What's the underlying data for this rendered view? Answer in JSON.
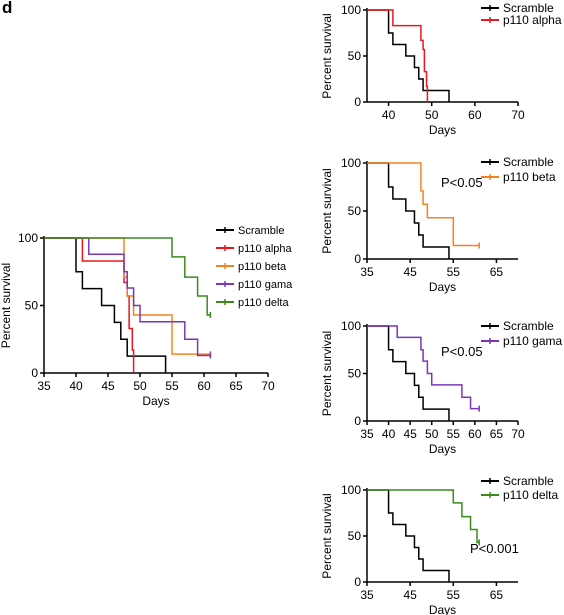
{
  "panel_label": "d",
  "chart_data": [
    {
      "type": "line",
      "subtype": "kaplan-meier",
      "title": "",
      "xlabel": "Days",
      "ylabel": "Percent survival",
      "xlim": [
        35,
        70
      ],
      "ylim": [
        0,
        100
      ],
      "xticks": [
        35,
        40,
        45,
        50,
        55,
        60,
        65,
        70
      ],
      "yticks": [
        0,
        50,
        100
      ],
      "legend_position": "right",
      "annotation": "",
      "series": [
        {
          "name": "Scramble",
          "color": "#000000",
          "steps": [
            [
              35,
              100
            ],
            [
              40,
              75
            ],
            [
              41,
              62.5
            ],
            [
              44,
              50
            ],
            [
              46,
              37.5
            ],
            [
              47,
              25
            ],
            [
              48,
              12.5
            ],
            [
              54,
              0
            ]
          ],
          "censored": []
        },
        {
          "name": "p110 alpha",
          "color": "#e8191f",
          "steps": [
            [
              35,
              100
            ],
            [
              41,
              83
            ],
            [
              47,
              83
            ],
            [
              47.5,
              67
            ],
            [
              48,
              57
            ],
            [
              48.3,
              33
            ],
            [
              48.8,
              17
            ],
            [
              49,
              0
            ]
          ],
          "censored": []
        },
        {
          "name": "p110 beta",
          "color": "#f58220",
          "steps": [
            [
              35,
              100
            ],
            [
              47,
              100
            ],
            [
              47.5,
              71
            ],
            [
              48,
              57
            ],
            [
              49,
              43
            ],
            [
              55,
              43
            ],
            [
              55,
              14
            ],
            [
              61,
              14
            ]
          ],
          "censored": [
            [
              61,
              14
            ]
          ]
        },
        {
          "name": "p110 gama",
          "color": "#7b35b9",
          "steps": [
            [
              35,
              100
            ],
            [
              42,
              100
            ],
            [
              42,
              88
            ],
            [
              47,
              88
            ],
            [
              47.5,
              75
            ],
            [
              48,
              63
            ],
            [
              49,
              50
            ],
            [
              50,
              38
            ],
            [
              55,
              38
            ],
            [
              57,
              25
            ],
            [
              59,
              13
            ],
            [
              61,
              13
            ]
          ],
          "censored": [
            [
              61,
              13
            ]
          ]
        },
        {
          "name": "p110 delta",
          "color": "#3a8a1e",
          "steps": [
            [
              35,
              100
            ],
            [
              54,
              100
            ],
            [
              55,
              86
            ],
            [
              57,
              71
            ],
            [
              59,
              57
            ],
            [
              60.3,
              57
            ],
            [
              60.5,
              43
            ],
            [
              61,
              43
            ]
          ],
          "censored": [
            [
              61,
              43
            ]
          ]
        }
      ]
    },
    {
      "type": "line",
      "subtype": "kaplan-meier",
      "title": "",
      "xlabel": "Days",
      "ylabel": "Percent survival",
      "xlim": [
        35,
        70
      ],
      "ylim": [
        0,
        100
      ],
      "xticks": [
        40,
        50,
        60,
        70
      ],
      "yticks": [
        0,
        50,
        100
      ],
      "legend_position": "top-right",
      "annotation": "",
      "series": [
        {
          "name": "Scramble",
          "color": "#000000",
          "steps": [
            [
              35,
              100
            ],
            [
              40,
              75
            ],
            [
              41,
              62.5
            ],
            [
              44,
              50
            ],
            [
              46,
              37.5
            ],
            [
              47,
              25
            ],
            [
              48,
              12.5
            ],
            [
              54,
              0
            ]
          ],
          "censored": []
        },
        {
          "name": "p110 alpha",
          "color": "#e8191f",
          "steps": [
            [
              35,
              100
            ],
            [
              41,
              83
            ],
            [
              47,
              83
            ],
            [
              47.5,
              67
            ],
            [
              48,
              57
            ],
            [
              48.3,
              33
            ],
            [
              48.8,
              17
            ],
            [
              49,
              0
            ]
          ],
          "censored": []
        }
      ]
    },
    {
      "type": "line",
      "subtype": "kaplan-meier",
      "title": "",
      "xlabel": "Days",
      "ylabel": "Percent survival",
      "xlim": [
        35,
        70
      ],
      "ylim": [
        0,
        100
      ],
      "xticks": [
        35,
        45,
        55,
        65
      ],
      "yticks": [
        0,
        50,
        100
      ],
      "legend_position": "top-right",
      "annotation": "P<0.05",
      "series": [
        {
          "name": "Scramble",
          "color": "#000000",
          "steps": [
            [
              35,
              100
            ],
            [
              40,
              75
            ],
            [
              41,
              62.5
            ],
            [
              44,
              50
            ],
            [
              46,
              37.5
            ],
            [
              47,
              25
            ],
            [
              48,
              12.5
            ],
            [
              54,
              0
            ]
          ],
          "censored": []
        },
        {
          "name": "p110 beta",
          "color": "#f58220",
          "steps": [
            [
              35,
              100
            ],
            [
              47,
              100
            ],
            [
              47.5,
              71
            ],
            [
              48,
              57
            ],
            [
              49,
              43
            ],
            [
              55,
              43
            ],
            [
              55,
              14
            ],
            [
              61,
              14
            ]
          ],
          "censored": [
            [
              61,
              14
            ]
          ]
        }
      ]
    },
    {
      "type": "line",
      "subtype": "kaplan-meier",
      "title": "",
      "xlabel": "Days",
      "ylabel": "Percent survival",
      "xlim": [
        35,
        70
      ],
      "ylim": [
        0,
        100
      ],
      "xticks": [
        35,
        40,
        45,
        50,
        55,
        60,
        65,
        70
      ],
      "yticks": [
        0,
        50,
        100
      ],
      "legend_position": "top-right",
      "annotation": "P<0.05",
      "series": [
        {
          "name": "Scramble",
          "color": "#000000",
          "steps": [
            [
              35,
              100
            ],
            [
              40,
              75
            ],
            [
              41,
              62.5
            ],
            [
              44,
              50
            ],
            [
              46,
              37.5
            ],
            [
              47,
              25
            ],
            [
              48,
              12.5
            ],
            [
              54,
              0
            ]
          ],
          "censored": []
        },
        {
          "name": "p110 gama",
          "color": "#7b35b9",
          "steps": [
            [
              35,
              100
            ],
            [
              42,
              100
            ],
            [
              42,
              88
            ],
            [
              47,
              88
            ],
            [
              47.5,
              75
            ],
            [
              48,
              63
            ],
            [
              49,
              50
            ],
            [
              50,
              38
            ],
            [
              55,
              38
            ],
            [
              57,
              25
            ],
            [
              59,
              13
            ],
            [
              61,
              13
            ]
          ],
          "censored": [
            [
              61,
              13
            ]
          ]
        }
      ]
    },
    {
      "type": "line",
      "subtype": "kaplan-meier",
      "title": "",
      "xlabel": "Days",
      "ylabel": "Percent survival",
      "xlim": [
        35,
        70
      ],
      "ylim": [
        0,
        100
      ],
      "xticks": [
        35,
        45,
        55,
        65
      ],
      "yticks": [
        0,
        50,
        100
      ],
      "legend_position": "top-right",
      "annotation": "P<0.001",
      "series": [
        {
          "name": "Scramble",
          "color": "#000000",
          "steps": [
            [
              35,
              100
            ],
            [
              40,
              75
            ],
            [
              41,
              62.5
            ],
            [
              44,
              50
            ],
            [
              46,
              37.5
            ],
            [
              47,
              25
            ],
            [
              48,
              12.5
            ],
            [
              54,
              0
            ]
          ],
          "censored": []
        },
        {
          "name": "p110 delta",
          "color": "#3a8a1e",
          "steps": [
            [
              35,
              100
            ],
            [
              54,
              100
            ],
            [
              55,
              86
            ],
            [
              57,
              71
            ],
            [
              59,
              57
            ],
            [
              60.3,
              57
            ],
            [
              60.5,
              43
            ],
            [
              61,
              43
            ]
          ],
          "censored": [
            [
              61,
              43
            ]
          ]
        }
      ]
    }
  ]
}
